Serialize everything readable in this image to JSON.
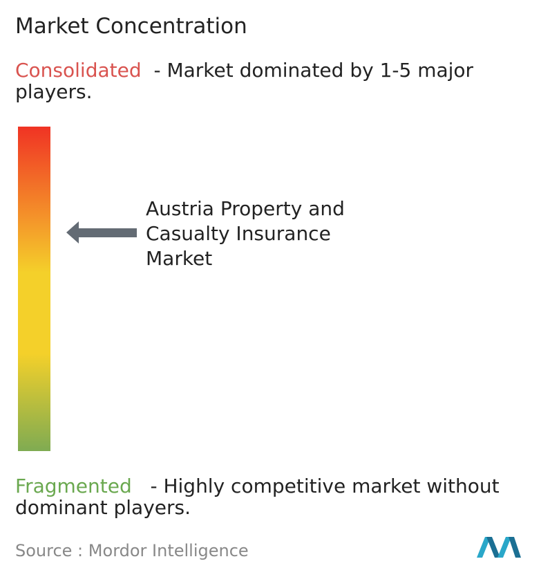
{
  "title": "Market Concentration",
  "consolidated": {
    "label": "Consolidated",
    "description": "- Market dominated by 1-5 major players."
  },
  "marker": {
    "label": "Austria Property and Casualty Insurance Market"
  },
  "fragmented": {
    "label": "Fragmented",
    "description": "- Highly competitive market without dominant players."
  },
  "source": {
    "label": "Source :",
    "name": "Mordor Intelligence"
  }
}
